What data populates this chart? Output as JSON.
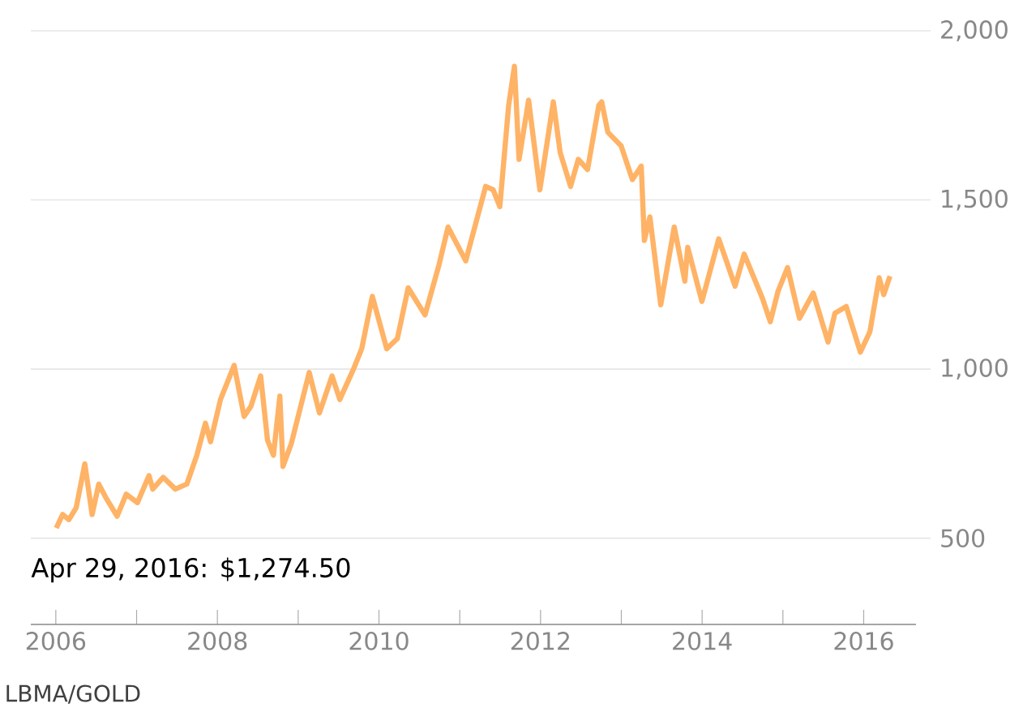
{
  "chart_data": {
    "type": "line",
    "x": [
      "2006-01-03",
      "2006-02-01",
      "2006-03-01",
      "2006-04-03",
      "2006-05-12",
      "2006-06-14",
      "2006-07-14",
      "2006-08-15",
      "2006-10-05",
      "2006-11-15",
      "2007-01-05",
      "2007-02-26",
      "2007-03-15",
      "2007-05-01",
      "2007-06-25",
      "2007-08-16",
      "2007-09-30",
      "2007-11-08",
      "2007-12-01",
      "2008-01-15",
      "2008-03-17",
      "2008-05-01",
      "2008-06-01",
      "2008-07-15",
      "2008-08-15",
      "2008-09-11",
      "2008-10-10",
      "2008-10-24",
      "2008-12-01",
      "2009-02-20",
      "2009-04-07",
      "2009-06-03",
      "2009-07-08",
      "2009-09-08",
      "2009-10-15",
      "2009-12-02",
      "2010-02-05",
      "2010-03-25",
      "2010-05-13",
      "2010-07-28",
      "2010-09-30",
      "2010-11-09",
      "2011-01-28",
      "2011-04-28",
      "2011-06-01",
      "2011-07-01",
      "2011-08-10",
      "2011-09-05",
      "2011-09-26",
      "2011-11-08",
      "2011-12-29",
      "2012-02-28",
      "2012-03-30",
      "2012-05-16",
      "2012-06-20",
      "2012-08-01",
      "2012-09-21",
      "2012-10-04",
      "2012-11-01",
      "2012-12-31",
      "2013-02-20",
      "2013-04-01",
      "2013-04-15",
      "2013-05-10",
      "2013-06-28",
      "2013-08-28",
      "2013-10-15",
      "2013-10-28",
      "2013-12-31",
      "2014-03-17",
      "2014-05-30",
      "2014-07-10",
      "2014-09-30",
      "2014-11-05",
      "2014-12-10",
      "2015-01-22",
      "2015-03-17",
      "2015-05-18",
      "2015-07-24",
      "2015-08-24",
      "2015-10-14",
      "2015-12-17",
      "2016-01-29",
      "2016-03-11",
      "2016-04-01",
      "2016-04-29"
    ],
    "series": [
      {
        "color": "#ffb366",
        "values": [
          530,
          570,
          555,
          590,
          720,
          570,
          660,
          620,
          565,
          630,
          605,
          685,
          645,
          680,
          645,
          660,
          745,
          840,
          785,
          910,
          1011,
          860,
          890,
          980,
          790,
          745,
          920,
          712,
          780,
          990,
          870,
          980,
          910,
          1000,
          1060,
          1215,
          1060,
          1090,
          1240,
          1160,
          1310,
          1420,
          1320,
          1540,
          1530,
          1480,
          1780,
          1895,
          1620,
          1795,
          1530,
          1790,
          1640,
          1540,
          1620,
          1590,
          1780,
          1790,
          1700,
          1660,
          1560,
          1600,
          1380,
          1450,
          1190,
          1420,
          1260,
          1360,
          1200,
          1385,
          1245,
          1340,
          1210,
          1140,
          1230,
          1300,
          1150,
          1225,
          1080,
          1165,
          1185,
          1050,
          1110,
          1270,
          1220,
          1275
        ]
      }
    ],
    "xlim": [
      "2005-09-10",
      "2016-08-25"
    ],
    "xticks": [
      "2006",
      {
        "value": "2007",
        "label": null
      },
      "2008",
      {
        "value": "2009",
        "label": null
      },
      "2010",
      {
        "value": "2011",
        "label": null
      },
      "2012",
      {
        "value": "2013",
        "label": null
      },
      "2014",
      {
        "value": "2015",
        "label": null
      },
      "2016"
    ],
    "ylim": [
      245,
      2000
    ],
    "yticks": [
      {
        "value": 500,
        "label": "500"
      },
      {
        "value": 1000,
        "label": "1,000"
      },
      {
        "value": 1500,
        "label": "1,500"
      },
      {
        "value": 2000,
        "label": "2,000"
      }
    ],
    "grid": "y",
    "annotations": [
      "Apr 29, 2016: $1,274.50",
      "LBMA/GOLD"
    ]
  }
}
